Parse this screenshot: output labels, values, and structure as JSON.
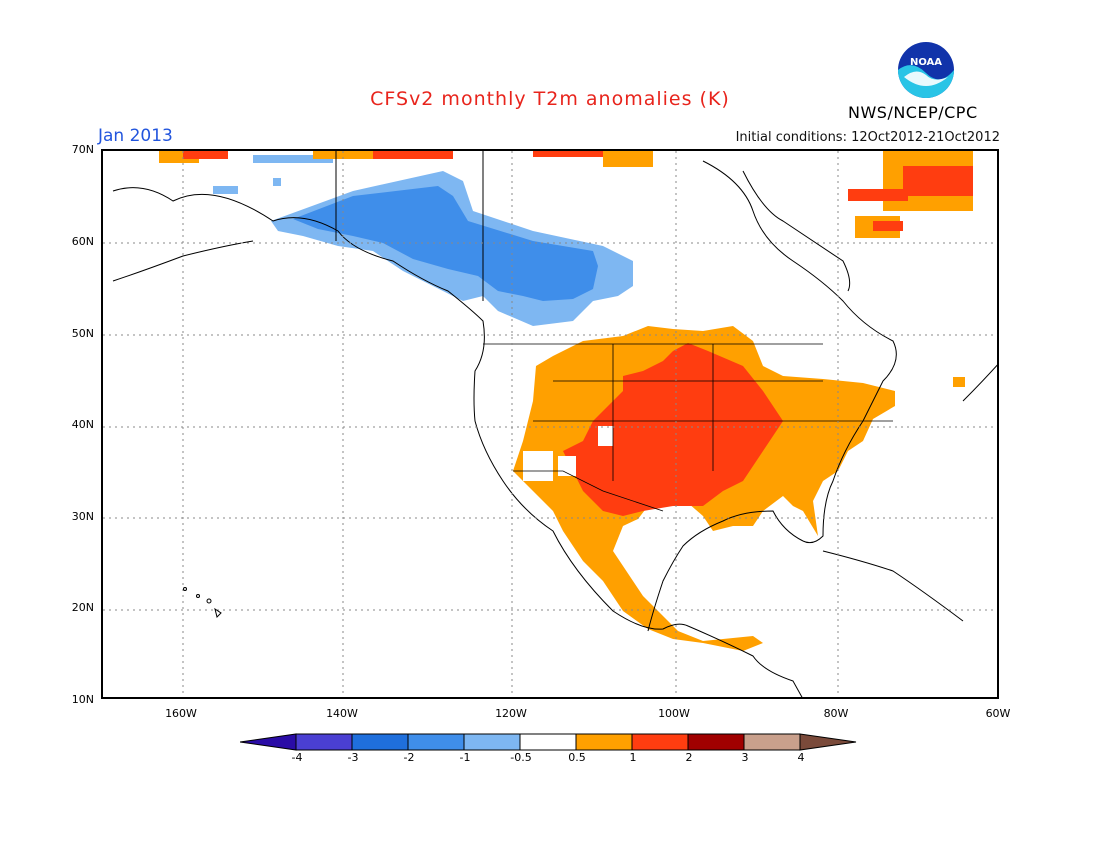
{
  "title": "CFSv2 monthly T2m anomalies (K)",
  "month": "Jan 2013",
  "initial_conditions": "Initial conditions: 12Oct2012-21Oct2012",
  "agency": "NWS/NCEP/CPC",
  "logo_text": "NOAA",
  "map": {
    "lat_labels": [
      "70N",
      "60N",
      "50N",
      "40N",
      "30N",
      "20N",
      "10N"
    ],
    "lon_labels": [
      "160W",
      "140W",
      "120W",
      "100W",
      "80W",
      "60W"
    ],
    "region": "North America"
  },
  "colorbar": {
    "labels": [
      "-4",
      "-3",
      "-2",
      "-1",
      "-0.5",
      "0.5",
      "1",
      "2",
      "3",
      "4"
    ],
    "colors": [
      "#2a0ca6",
      "#4a3fd2",
      "#1f6fdc",
      "#3f8eea",
      "#7eb7f2",
      "#ffffff",
      "#ffa000",
      "#ff3d10",
      "#a00000",
      "#c9a08c",
      "#7a4a3a"
    ]
  }
}
